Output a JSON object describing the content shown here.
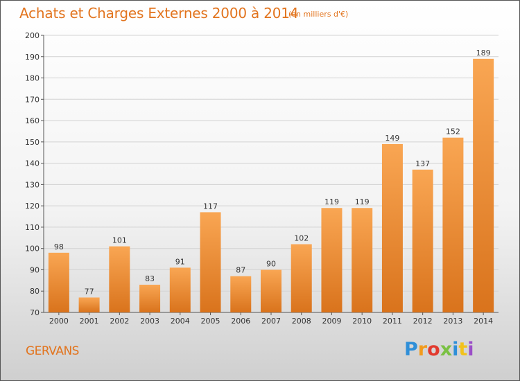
{
  "header": {
    "title": "Achats et Charges Externes 2000 à 2014",
    "subtitle": "(en milliers d'€)"
  },
  "footer": {
    "place": "GERVANS",
    "logo_text": "Proxiti"
  },
  "colors": {
    "accent": "#e2741e",
    "bar_light": "#f9a653",
    "bar_dark": "#d9731c"
  },
  "chart_data": {
    "type": "bar",
    "title": "Achats et Charges Externes 2000 à 2014",
    "subtitle": "(en milliers d'€)",
    "categories": [
      "2000",
      "2001",
      "2002",
      "2003",
      "2004",
      "2005",
      "2006",
      "2007",
      "2008",
      "2009",
      "2010",
      "2011",
      "2012",
      "2013",
      "2014"
    ],
    "values": [
      98,
      77,
      101,
      83,
      91,
      117,
      87,
      90,
      102,
      119,
      119,
      149,
      137,
      152,
      189
    ],
    "ylim": [
      70,
      200
    ],
    "yticks": [
      70,
      80,
      90,
      100,
      110,
      120,
      130,
      140,
      150,
      160,
      170,
      180,
      190,
      200
    ],
    "grid": true,
    "xlabel": "",
    "ylabel": ""
  }
}
